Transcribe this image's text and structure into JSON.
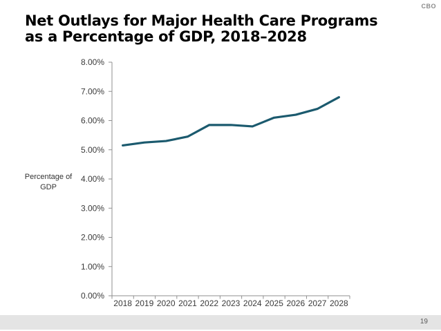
{
  "slide": {
    "brand": "CBO",
    "title_lines": [
      "Net Outlays for Major Health Care Programs",
      "as a Percentage of GDP, 2018–2028"
    ],
    "page_number": "19"
  },
  "chart_data": {
    "type": "line",
    "title": "Net Outlays for Major Health Care Programs as a Percentage of GDP, 2018–2028",
    "ylabel": "Percentage of GDP",
    "xlabel": "",
    "x_labels": [
      "2018",
      "2019",
      "2020",
      "2021",
      "2022",
      "2023",
      "2024",
      "2025",
      "2026",
      "2027",
      "2028"
    ],
    "values": [
      5.15,
      5.25,
      5.3,
      5.45,
      5.85,
      5.85,
      5.8,
      6.1,
      6.2,
      6.4,
      6.8
    ],
    "ylim": [
      0,
      8
    ],
    "ytick_labels": [
      "8.00%",
      "7.00%",
      "6.00%",
      "5.00%",
      "4.00%",
      "3.00%",
      "2.00%",
      "1.00%",
      "0.00%"
    ],
    "grid": false,
    "legend": "none",
    "line_color": "#1b5a6e",
    "axis_color": "#8f8f8f",
    "label_color": "#3a3a3a"
  }
}
